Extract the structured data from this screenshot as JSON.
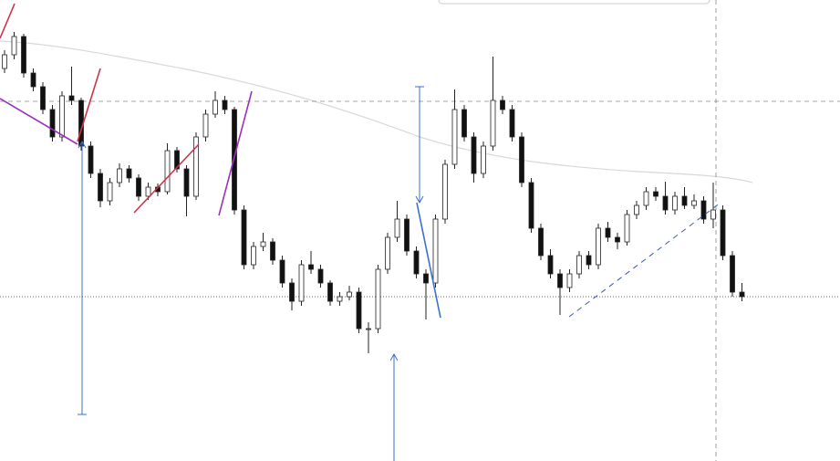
{
  "chart_data": {
    "type": "candlestick",
    "ylim": [
      0,
      505
    ],
    "up_color": "#ffffff",
    "down_color": "#111111",
    "edge_color": "#222222",
    "ohlc": [
      [
        430,
        450,
        425,
        445
      ],
      [
        445,
        470,
        440,
        465
      ],
      [
        465,
        468,
        420,
        425
      ],
      [
        425,
        430,
        405,
        410
      ],
      [
        410,
        415,
        380,
        385
      ],
      [
        385,
        390,
        350,
        355
      ],
      [
        355,
        405,
        350,
        400
      ],
      [
        400,
        432,
        390,
        395
      ],
      [
        395,
        398,
        340,
        345
      ],
      [
        345,
        350,
        310,
        315
      ],
      [
        315,
        320,
        278,
        285
      ],
      [
        285,
        310,
        280,
        305
      ],
      [
        305,
        326,
        300,
        320
      ],
      [
        320,
        324,
        305,
        310
      ],
      [
        310,
        314,
        285,
        290
      ],
      [
        290,
        305,
        286,
        300
      ],
      [
        300,
        304,
        290,
        295
      ],
      [
        295,
        348,
        292,
        340
      ],
      [
        340,
        344,
        316,
        320
      ],
      [
        320,
        324,
        268,
        290
      ],
      [
        290,
        360,
        286,
        355
      ],
      [
        355,
        385,
        350,
        380
      ],
      [
        380,
        405,
        376,
        395
      ],
      [
        395,
        400,
        380,
        385
      ],
      [
        385,
        388,
        270,
        275
      ],
      [
        275,
        280,
        210,
        215
      ],
      [
        215,
        240,
        210,
        235
      ],
      [
        235,
        250,
        230,
        240
      ],
      [
        240,
        244,
        215,
        220
      ],
      [
        220,
        225,
        190,
        195
      ],
      [
        195,
        200,
        165,
        175
      ],
      [
        175,
        220,
        170,
        215
      ],
      [
        215,
        230,
        205,
        210
      ],
      [
        210,
        215,
        190,
        195
      ],
      [
        195,
        198,
        170,
        175
      ],
      [
        175,
        185,
        170,
        180
      ],
      [
        180,
        192,
        176,
        185
      ],
      [
        185,
        190,
        140,
        145
      ],
      [
        145,
        152,
        118,
        145
      ],
      [
        145,
        215,
        140,
        210
      ],
      [
        210,
        250,
        205,
        245
      ],
      [
        245,
        285,
        240,
        265
      ],
      [
        265,
        270,
        225,
        230
      ],
      [
        230,
        235,
        200,
        205
      ],
      [
        205,
        210,
        155,
        195
      ],
      [
        195,
        270,
        190,
        265
      ],
      [
        265,
        330,
        260,
        325
      ],
      [
        325,
        407,
        320,
        385
      ],
      [
        385,
        390,
        350,
        355
      ],
      [
        355,
        360,
        305,
        315
      ],
      [
        315,
        350,
        310,
        345
      ],
      [
        345,
        443,
        340,
        395
      ],
      [
        395,
        400,
        380,
        385
      ],
      [
        385,
        390,
        350,
        355
      ],
      [
        355,
        360,
        300,
        305
      ],
      [
        305,
        310,
        250,
        255
      ],
      [
        255,
        260,
        220,
        225
      ],
      [
        225,
        232,
        200,
        205
      ],
      [
        205,
        210,
        160,
        190
      ],
      [
        190,
        210,
        185,
        205
      ],
      [
        205,
        230,
        200,
        225
      ],
      [
        225,
        230,
        210,
        215
      ],
      [
        215,
        260,
        210,
        255
      ],
      [
        255,
        262,
        240,
        245
      ],
      [
        245,
        250,
        232,
        240
      ],
      [
        240,
        275,
        236,
        270
      ],
      [
        270,
        285,
        265,
        280
      ],
      [
        280,
        300,
        275,
        295
      ],
      [
        295,
        300,
        285,
        290
      ],
      [
        290,
        306,
        270,
        275
      ],
      [
        275,
        295,
        270,
        290
      ],
      [
        290,
        300,
        276,
        280
      ],
      [
        280,
        292,
        276,
        285
      ],
      [
        285,
        290,
        260,
        265
      ],
      [
        265,
        305,
        255,
        275
      ],
      [
        275,
        280,
        220,
        225
      ],
      [
        225,
        230,
        180,
        185
      ],
      [
        185,
        195,
        175,
        180
      ]
    ]
  }
}
